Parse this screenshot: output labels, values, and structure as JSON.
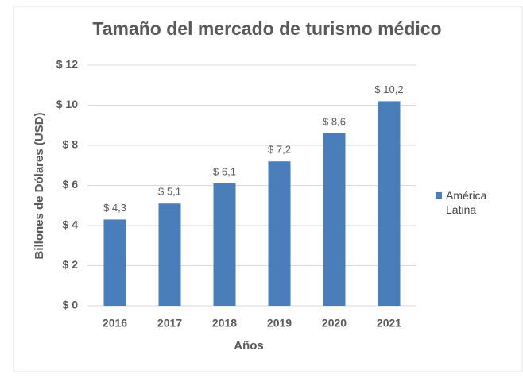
{
  "chart_data": {
    "type": "bar",
    "title": "Tamaño del mercado de turismo médico",
    "x_label": "Años",
    "y_label": "Billones de Dólares (USD)",
    "categories": [
      "2016",
      "2017",
      "2018",
      "2019",
      "2020",
      "2021"
    ],
    "series": [
      {
        "name": "América Latina",
        "color": "#4a7ebb",
        "values": [
          4.3,
          5.1,
          6.1,
          7.2,
          8.6,
          10.2
        ],
        "value_labels": [
          "$ 4,3",
          "$ 5,1",
          "$ 6,1",
          "$ 7,2",
          "$ 8,6",
          "$ 10,2"
        ]
      }
    ],
    "ylim": [
      0,
      12
    ],
    "yticks": [
      {
        "value": 0,
        "label": "$ 0"
      },
      {
        "value": 2,
        "label": "$ 2"
      },
      {
        "value": 4,
        "label": "$ 4"
      },
      {
        "value": 6,
        "label": "$ 6"
      },
      {
        "value": 8,
        "label": "$ 8"
      },
      {
        "value": 10,
        "label": "$ 10"
      },
      {
        "value": 12,
        "label": "$ 12"
      }
    ],
    "grid": true,
    "legend": "right"
  }
}
